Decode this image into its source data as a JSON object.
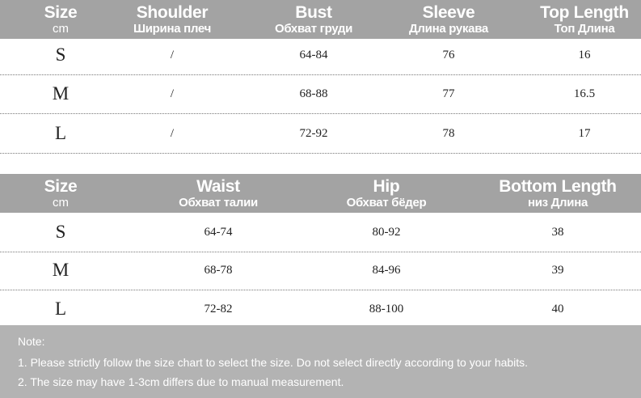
{
  "top_table": {
    "headers": [
      {
        "en": "Size",
        "ru": "cm"
      },
      {
        "en": "Shoulder",
        "ru": "Ширина плеч"
      },
      {
        "en": "Bust",
        "ru": "Обхват груди"
      },
      {
        "en": "Sleeve",
        "ru": "Длина рукава"
      },
      {
        "en": "Top Length",
        "ru": "Топ Длина"
      }
    ],
    "rows": [
      [
        "S",
        "/",
        "64-84",
        "76",
        "16"
      ],
      [
        "M",
        "/",
        "68-88",
        "77",
        "16.5"
      ],
      [
        "L",
        "/",
        "72-92",
        "78",
        "17"
      ]
    ]
  },
  "bottom_table": {
    "headers": [
      {
        "en": "Size",
        "ru": "cm"
      },
      {
        "en": "Waist",
        "ru": "Обхват талии"
      },
      {
        "en": "Hip",
        "ru": "Обхват бёдер"
      },
      {
        "en": "Bottom Length",
        "ru": "низ Длина"
      }
    ],
    "rows": [
      [
        "S",
        "64-74",
        "80-92",
        "38"
      ],
      [
        "M",
        "68-78",
        "84-96",
        "39"
      ],
      [
        "L",
        "72-82",
        "88-100",
        "40"
      ]
    ]
  },
  "note": {
    "title": "Note:",
    "lines": [
      "1. Please strictly follow the size chart to select the size. Do not select directly according to your habits.",
      "2. The size may have 1-3cm differs due to manual measurement."
    ]
  },
  "colors": {
    "header_bg": "#a3a3a3",
    "note_bg": "#b3b3b3"
  }
}
